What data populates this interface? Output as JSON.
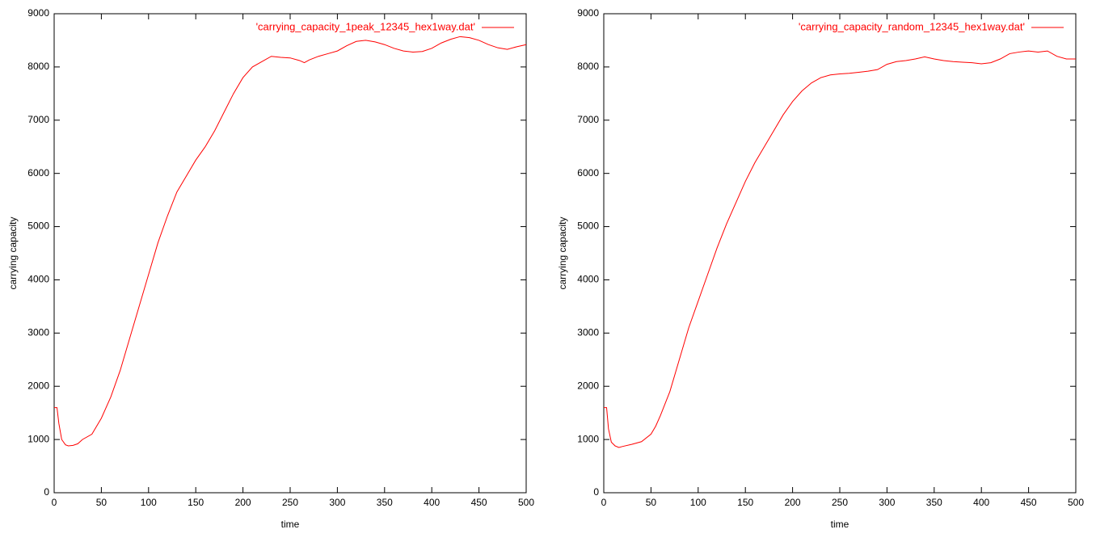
{
  "chart_data": [
    {
      "type": "line",
      "xlabel": "time",
      "ylabel": "carrying capacity",
      "legend": "top-right",
      "grid": false,
      "x": [
        0,
        3,
        5,
        8,
        12,
        15,
        20,
        25,
        30,
        40,
        50,
        60,
        70,
        80,
        90,
        100,
        110,
        120,
        130,
        140,
        150,
        160,
        170,
        180,
        190,
        200,
        210,
        220,
        230,
        240,
        250,
        260,
        265,
        270,
        280,
        290,
        300,
        310,
        320,
        330,
        340,
        350,
        360,
        370,
        380,
        390,
        400,
        410,
        420,
        430,
        440,
        450,
        460,
        470,
        480,
        490,
        500
      ],
      "series": [
        {
          "name": "'carrying_capacity_1peak_12345_hex1way.dat'",
          "color": "#ff0000",
          "values": [
            1600,
            1600,
            1300,
            1000,
            900,
            880,
            890,
            920,
            1000,
            1100,
            1400,
            1800,
            2300,
            2900,
            3500,
            4100,
            4700,
            5200,
            5650,
            5950,
            6250,
            6500,
            6800,
            7150,
            7500,
            7800,
            8000,
            8100,
            8200,
            8180,
            8170,
            8120,
            8080,
            8130,
            8200,
            8250,
            8300,
            8400,
            8480,
            8500,
            8470,
            8420,
            8350,
            8300,
            8280,
            8290,
            8350,
            8450,
            8520,
            8570,
            8550,
            8500,
            8420,
            8360,
            8330,
            8380,
            8420
          ]
        }
      ],
      "xlim": [
        0,
        500
      ],
      "xticks": [
        0,
        50,
        100,
        150,
        200,
        250,
        300,
        350,
        400,
        450,
        500
      ],
      "ylim": [
        0,
        9000
      ],
      "yticks": [
        0,
        1000,
        2000,
        3000,
        4000,
        5000,
        6000,
        7000,
        8000,
        9000
      ]
    },
    {
      "type": "line",
      "xlabel": "time",
      "ylabel": "carrying capacity",
      "legend": "top-right",
      "grid": false,
      "x": [
        0,
        3,
        5,
        8,
        12,
        16,
        20,
        30,
        40,
        50,
        55,
        60,
        70,
        80,
        90,
        100,
        110,
        120,
        130,
        140,
        150,
        160,
        170,
        180,
        190,
        200,
        210,
        220,
        230,
        240,
        250,
        260,
        270,
        280,
        290,
        300,
        310,
        320,
        330,
        340,
        350,
        360,
        370,
        380,
        390,
        400,
        410,
        420,
        430,
        440,
        450,
        460,
        470,
        480,
        490,
        500
      ],
      "series": [
        {
          "name": "'carrying_capacity_random_12345_hex1way.dat'",
          "color": "#ff0000",
          "values": [
            1600,
            1600,
            1200,
            950,
            880,
            850,
            870,
            910,
            960,
            1100,
            1250,
            1450,
            1900,
            2500,
            3100,
            3600,
            4100,
            4600,
            5050,
            5450,
            5850,
            6200,
            6500,
            6800,
            7100,
            7350,
            7550,
            7700,
            7800,
            7850,
            7870,
            7880,
            7900,
            7920,
            7950,
            8050,
            8100,
            8120,
            8150,
            8190,
            8150,
            8120,
            8100,
            8090,
            8080,
            8060,
            8080,
            8150,
            8250,
            8280,
            8300,
            8280,
            8300,
            8200,
            8150,
            8150
          ]
        }
      ],
      "xlim": [
        0,
        500
      ],
      "xticks": [
        0,
        50,
        100,
        150,
        200,
        250,
        300,
        350,
        400,
        450,
        500
      ],
      "ylim": [
        0,
        9000
      ],
      "yticks": [
        0,
        1000,
        2000,
        3000,
        4000,
        5000,
        6000,
        7000,
        8000,
        9000
      ]
    }
  ]
}
